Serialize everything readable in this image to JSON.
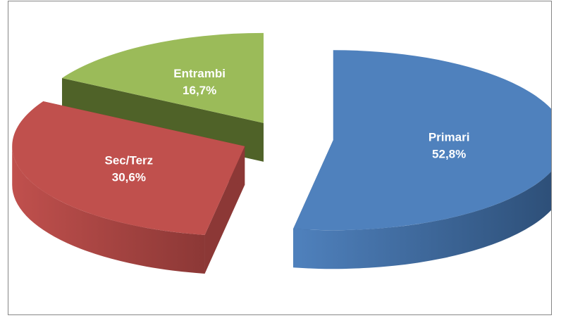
{
  "chart_data": {
    "type": "pie",
    "style": "3d-exploded",
    "title": "",
    "slices": [
      {
        "label": "Primari",
        "value": 52.8,
        "value_label": "52,8%",
        "color": "#4f81bd",
        "side_color": "#2c4d75"
      },
      {
        "label": "Sec/Terz",
        "value": 30.6,
        "value_label": "30,6%",
        "color": "#c0504d",
        "side_color": "#8c3836"
      },
      {
        "label": "Entrambi",
        "value": 16.7,
        "value_label": "16,7%",
        "color": "#9bbb59",
        "side_color": "#4f6228"
      }
    ],
    "legend": "none",
    "data_labels": "inside"
  }
}
